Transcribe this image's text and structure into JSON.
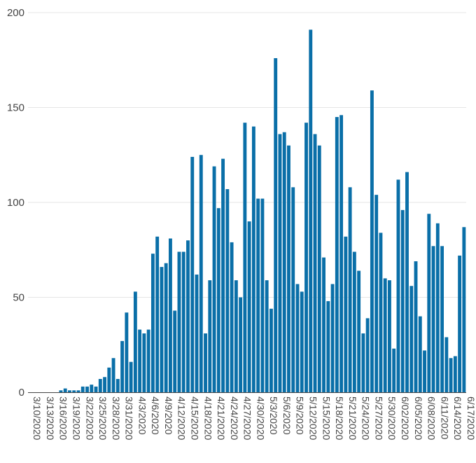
{
  "chart_data": {
    "type": "bar",
    "title": "",
    "xlabel": "",
    "ylabel": "",
    "ylim": [
      0,
      200
    ],
    "yticks": [
      0,
      50,
      100,
      150,
      200
    ],
    "grid": true,
    "bar_color": "#0a6fa8",
    "x_tick_labels": [
      "3/10/2020",
      "3/13/2020",
      "3/16/2020",
      "3/19/2020",
      "3/22/2020",
      "3/25/2020",
      "3/28/2020",
      "3/31/2020",
      "4/3/2020",
      "4/6/2020",
      "4/9/2020",
      "4/12/2020",
      "4/15/2020",
      "4/18/2020",
      "4/21/2020",
      "4/24/2020",
      "4/27/2020",
      "4/30/2020",
      "5/3/2020",
      "5/6/2020",
      "5/9/2020",
      "5/12/2020",
      "5/15/2020",
      "5/18/2020",
      "5/21/2020",
      "5/24/2020",
      "5/27/2020",
      "5/30/2020",
      "6/02/2020",
      "6/05/2020",
      "6/08/2020",
      "6/11/2020",
      "6/14/2020",
      "6/17/2020"
    ],
    "x_start_date": "3/10/2020",
    "values": [
      0,
      0,
      0,
      0,
      0,
      0,
      0,
      1,
      2,
      1,
      1,
      1,
      3,
      3,
      4,
      3,
      7,
      8,
      13,
      18,
      7,
      27,
      42,
      16,
      53,
      33,
      31,
      33,
      73,
      82,
      66,
      68,
      81,
      43,
      74,
      74,
      80,
      124,
      62,
      125,
      31,
      59,
      119,
      97,
      123,
      107,
      79,
      59,
      50,
      142,
      90,
      140,
      102,
      102,
      59,
      44,
      176,
      136,
      137,
      130,
      108,
      57,
      53,
      142,
      191,
      136,
      130,
      71,
      48,
      57,
      145,
      146,
      82,
      108,
      74,
      64,
      31,
      39,
      159,
      104,
      84,
      60,
      59,
      23,
      112,
      96,
      116,
      56,
      69,
      40,
      22,
      94,
      77,
      89,
      77,
      29,
      18,
      19,
      72,
      87
    ]
  }
}
